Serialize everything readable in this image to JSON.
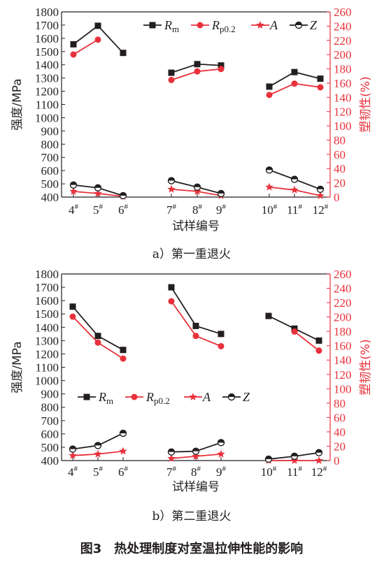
{
  "figure_caption": "图3　热处理制度对室温拉伸性能的影响",
  "colors": {
    "black": "#231f20",
    "red": "#e8313b"
  },
  "chart_data": [
    {
      "type": "line",
      "caption": "a）第一重退火",
      "xlabel": "试样编号",
      "ylabel_left": "强度/MPa",
      "ylabel_right": "塑韧性(%)",
      "ylim_left": [
        400,
        1800
      ],
      "yticks_left": [
        400,
        500,
        600,
        700,
        800,
        900,
        1000,
        1100,
        1200,
        1300,
        1400,
        1500,
        1600,
        1700,
        1800
      ],
      "ylim_right": [
        0,
        260
      ],
      "yticks_right": [
        0,
        20,
        40,
        60,
        80,
        100,
        120,
        140,
        160,
        180,
        200,
        220,
        240,
        260
      ],
      "categories": [
        "4",
        "5",
        "6",
        "7",
        "8",
        "9",
        "10",
        "11",
        "12"
      ],
      "category_suffix": "#",
      "groups": [
        [
          0,
          1,
          2
        ],
        [
          3,
          4,
          5
        ],
        [
          6,
          7,
          8
        ]
      ],
      "legend": "top",
      "series": [
        {
          "name": "R",
          "sub": "m",
          "axis": "left",
          "marker": "square",
          "color": "#231f20",
          "values": [
            1555,
            1695,
            1490,
            1340,
            1405,
            1395,
            1235,
            1345,
            1295
          ]
        },
        {
          "name": "R",
          "sub": "p0.2",
          "axis": "left",
          "marker": "circle",
          "color": "#e8313b",
          "values": [
            1478,
            1590,
            null,
            1285,
            1350,
            1368,
            1172,
            1258,
            1230
          ]
        },
        {
          "name": "A",
          "sub": "",
          "axis": "right",
          "marker": "star",
          "color": "#e8313b",
          "values": [
            8,
            5,
            1,
            11,
            8,
            2,
            14,
            10,
            2
          ]
        },
        {
          "name": "Z",
          "sub": "",
          "axis": "right",
          "marker": "halfcircle",
          "color": "#231f20",
          "values": [
            17,
            13,
            2,
            23,
            14,
            5,
            38,
            25,
            11
          ]
        }
      ]
    },
    {
      "type": "line",
      "caption": "b）第二重退火",
      "xlabel": "试样编号",
      "ylabel_left": "强度/MPa",
      "ylabel_right": "塑韧性(%)",
      "ylim_left": [
        400,
        1800
      ],
      "yticks_left": [
        400,
        500,
        600,
        700,
        800,
        900,
        1000,
        1100,
        1200,
        1300,
        1400,
        1500,
        1600,
        1700,
        1800
      ],
      "ylim_right": [
        0,
        260
      ],
      "yticks_right": [
        0,
        20,
        40,
        60,
        80,
        100,
        120,
        140,
        160,
        180,
        200,
        220,
        240,
        260
      ],
      "categories": [
        "4",
        "5",
        "6",
        "7",
        "8",
        "9",
        "10",
        "11",
        "12"
      ],
      "category_suffix": "#",
      "groups": [
        [
          0,
          1,
          2
        ],
        [
          3,
          4,
          5
        ],
        [
          6,
          7,
          8
        ]
      ],
      "legend": "middle",
      "series": [
        {
          "name": "R",
          "sub": "m",
          "axis": "left",
          "marker": "square",
          "color": "#231f20",
          "values": [
            1555,
            1335,
            1230,
            1700,
            1410,
            1350,
            1485,
            1390,
            1300
          ]
        },
        {
          "name": "R",
          "sub": "p0.2",
          "axis": "left",
          "marker": "circle",
          "color": "#e8313b",
          "values": [
            1480,
            1285,
            1165,
            1595,
            1335,
            1258,
            null,
            1368,
            1225
          ]
        },
        {
          "name": "A",
          "sub": "",
          "axis": "right",
          "marker": "star",
          "color": "#e8313b",
          "values": [
            7,
            9,
            13,
            3,
            6,
            9,
            0,
            0,
            0
          ]
        },
        {
          "name": "Z",
          "sub": "",
          "axis": "right",
          "marker": "halfcircle",
          "color": "#231f20",
          "values": [
            16,
            21,
            38,
            12,
            13,
            25,
            2,
            6,
            11
          ]
        }
      ]
    }
  ]
}
